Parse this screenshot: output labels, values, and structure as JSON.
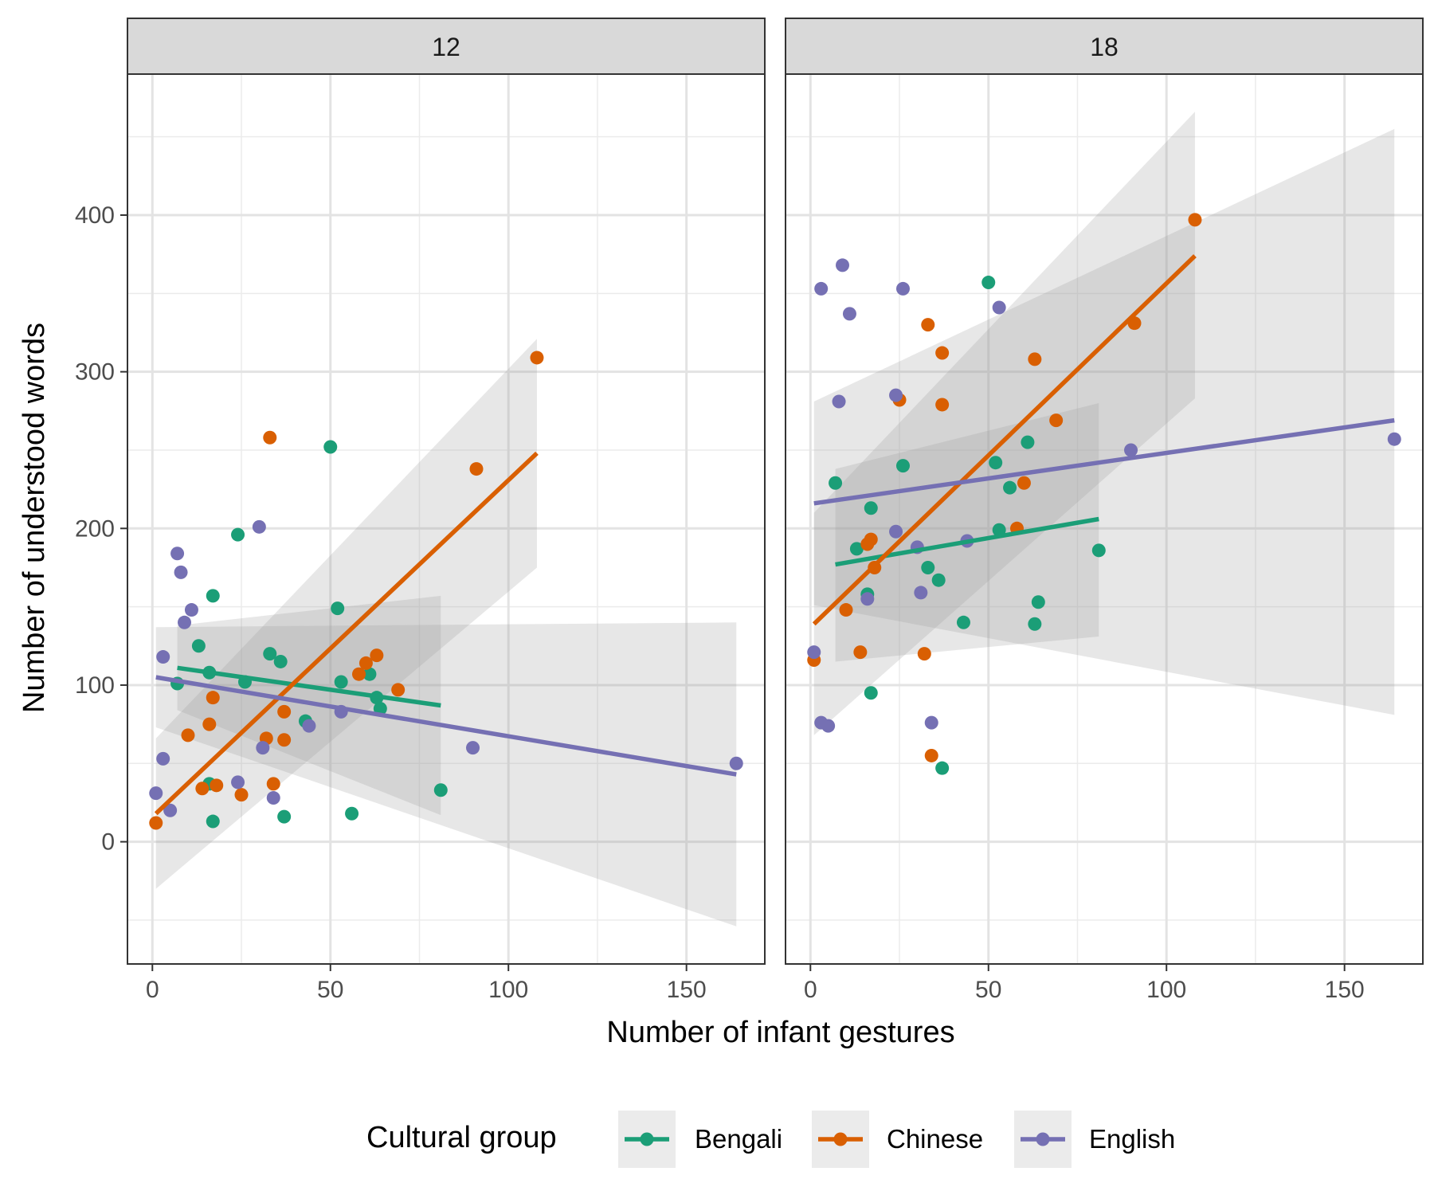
{
  "chart_data": {
    "type": "scatter",
    "xlabel": "Number of infant gestures",
    "ylabel": "Number of understood words",
    "xlim": [
      -7,
      172
    ],
    "ylim": [
      -78,
      490
    ],
    "x_ticks": [
      0,
      50,
      100,
      150
    ],
    "y_ticks": [
      0,
      100,
      200,
      300,
      400
    ],
    "legend": {
      "title": "Cultural group",
      "position": "bottom",
      "entries": [
        "Bengali",
        "Chinese",
        "English"
      ]
    },
    "colors": {
      "Bengali": "#1b9e77",
      "Chinese": "#d95f02",
      "English": "#7570b3"
    },
    "panels": [
      {
        "label": "12",
        "points": [
          {
            "group": "Bengali",
            "x": 7,
            "y": 101
          },
          {
            "group": "Bengali",
            "x": 13,
            "y": 125
          },
          {
            "group": "Bengali",
            "x": 16,
            "y": 108
          },
          {
            "group": "Bengali",
            "x": 17,
            "y": 157
          },
          {
            "group": "Bengali",
            "x": 24,
            "y": 196
          },
          {
            "group": "Bengali",
            "x": 26,
            "y": 102
          },
          {
            "group": "Bengali",
            "x": 33,
            "y": 120
          },
          {
            "group": "Bengali",
            "x": 36,
            "y": 115
          },
          {
            "group": "Bengali",
            "x": 37,
            "y": 16
          },
          {
            "group": "Bengali",
            "x": 43,
            "y": 77
          },
          {
            "group": "Bengali",
            "x": 50,
            "y": 252
          },
          {
            "group": "Bengali",
            "x": 52,
            "y": 149
          },
          {
            "group": "Bengali",
            "x": 53,
            "y": 102
          },
          {
            "group": "Bengali",
            "x": 56,
            "y": 18
          },
          {
            "group": "Bengali",
            "x": 61,
            "y": 107
          },
          {
            "group": "Bengali",
            "x": 63,
            "y": 92
          },
          {
            "group": "Bengali",
            "x": 64,
            "y": 85
          },
          {
            "group": "Bengali",
            "x": 81,
            "y": 33
          },
          {
            "group": "Bengali",
            "x": 16,
            "y": 37
          },
          {
            "group": "Bengali",
            "x": 17,
            "y": 13
          },
          {
            "group": "Chinese",
            "x": 1,
            "y": 12
          },
          {
            "group": "Chinese",
            "x": 10,
            "y": 68
          },
          {
            "group": "Chinese",
            "x": 14,
            "y": 34
          },
          {
            "group": "Chinese",
            "x": 16,
            "y": 75
          },
          {
            "group": "Chinese",
            "x": 17,
            "y": 92
          },
          {
            "group": "Chinese",
            "x": 18,
            "y": 36
          },
          {
            "group": "Chinese",
            "x": 25,
            "y": 30
          },
          {
            "group": "Chinese",
            "x": 32,
            "y": 66
          },
          {
            "group": "Chinese",
            "x": 33,
            "y": 258
          },
          {
            "group": "Chinese",
            "x": 34,
            "y": 37
          },
          {
            "group": "Chinese",
            "x": 37,
            "y": 65
          },
          {
            "group": "Chinese",
            "x": 37,
            "y": 83
          },
          {
            "group": "Chinese",
            "x": 58,
            "y": 107
          },
          {
            "group": "Chinese",
            "x": 60,
            "y": 114
          },
          {
            "group": "Chinese",
            "x": 63,
            "y": 119
          },
          {
            "group": "Chinese",
            "x": 69,
            "y": 97
          },
          {
            "group": "Chinese",
            "x": 91,
            "y": 238
          },
          {
            "group": "Chinese",
            "x": 108,
            "y": 309
          },
          {
            "group": "English",
            "x": 1,
            "y": 31
          },
          {
            "group": "English",
            "x": 3,
            "y": 53
          },
          {
            "group": "English",
            "x": 3,
            "y": 118
          },
          {
            "group": "English",
            "x": 5,
            "y": 20
          },
          {
            "group": "English",
            "x": 7,
            "y": 184
          },
          {
            "group": "English",
            "x": 8,
            "y": 172
          },
          {
            "group": "English",
            "x": 9,
            "y": 140
          },
          {
            "group": "English",
            "x": 11,
            "y": 148
          },
          {
            "group": "English",
            "x": 24,
            "y": 38
          },
          {
            "group": "English",
            "x": 30,
            "y": 201
          },
          {
            "group": "English",
            "x": 31,
            "y": 60
          },
          {
            "group": "English",
            "x": 34,
            "y": 28
          },
          {
            "group": "English",
            "x": 44,
            "y": 74
          },
          {
            "group": "English",
            "x": 53,
            "y": 83
          },
          {
            "group": "English",
            "x": 90,
            "y": 60
          },
          {
            "group": "English",
            "x": 164,
            "y": 50
          }
        ],
        "fits": [
          {
            "group": "Bengali",
            "x": [
              7,
              81
            ],
            "y": [
              111,
              87
            ],
            "ci_upper": [
              138,
              157
            ],
            "ci_lower": [
              84,
              17
            ]
          },
          {
            "group": "Chinese",
            "x": [
              1,
              108
            ],
            "y": [
              18,
              248
            ],
            "ci_upper": [
              66,
              321
            ],
            "ci_lower": [
              -30,
              175
            ]
          },
          {
            "group": "English",
            "x": [
              1,
              164
            ],
            "y": [
              105,
              43
            ],
            "ci_upper": [
              137,
              140
            ],
            "ci_lower": [
              73,
              -54
            ]
          }
        ]
      },
      {
        "label": "18",
        "points": [
          {
            "group": "Bengali",
            "x": 7,
            "y": 229
          },
          {
            "group": "Bengali",
            "x": 13,
            "y": 187
          },
          {
            "group": "Bengali",
            "x": 16,
            "y": 158
          },
          {
            "group": "Bengali",
            "x": 17,
            "y": 213
          },
          {
            "group": "Bengali",
            "x": 17,
            "y": 95
          },
          {
            "group": "Bengali",
            "x": 26,
            "y": 240
          },
          {
            "group": "Bengali",
            "x": 33,
            "y": 175
          },
          {
            "group": "Bengali",
            "x": 36,
            "y": 167
          },
          {
            "group": "Bengali",
            "x": 37,
            "y": 47
          },
          {
            "group": "Bengali",
            "x": 43,
            "y": 140
          },
          {
            "group": "Bengali",
            "x": 50,
            "y": 357
          },
          {
            "group": "Bengali",
            "x": 52,
            "y": 242
          },
          {
            "group": "Bengali",
            "x": 53,
            "y": 199
          },
          {
            "group": "Bengali",
            "x": 56,
            "y": 226
          },
          {
            "group": "Bengali",
            "x": 61,
            "y": 255
          },
          {
            "group": "Bengali",
            "x": 63,
            "y": 139
          },
          {
            "group": "Bengali",
            "x": 64,
            "y": 153
          },
          {
            "group": "Bengali",
            "x": 81,
            "y": 186
          },
          {
            "group": "Chinese",
            "x": 1,
            "y": 116
          },
          {
            "group": "Chinese",
            "x": 10,
            "y": 148
          },
          {
            "group": "Chinese",
            "x": 14,
            "y": 121
          },
          {
            "group": "Chinese",
            "x": 16,
            "y": 190
          },
          {
            "group": "Chinese",
            "x": 17,
            "y": 193
          },
          {
            "group": "Chinese",
            "x": 18,
            "y": 175
          },
          {
            "group": "Chinese",
            "x": 25,
            "y": 282
          },
          {
            "group": "Chinese",
            "x": 32,
            "y": 120
          },
          {
            "group": "Chinese",
            "x": 33,
            "y": 330
          },
          {
            "group": "Chinese",
            "x": 34,
            "y": 55
          },
          {
            "group": "Chinese",
            "x": 37,
            "y": 312
          },
          {
            "group": "Chinese",
            "x": 37,
            "y": 279
          },
          {
            "group": "Chinese",
            "x": 58,
            "y": 200
          },
          {
            "group": "Chinese",
            "x": 60,
            "y": 229
          },
          {
            "group": "Chinese",
            "x": 63,
            "y": 308
          },
          {
            "group": "Chinese",
            "x": 69,
            "y": 269
          },
          {
            "group": "Chinese",
            "x": 91,
            "y": 331
          },
          {
            "group": "Chinese",
            "x": 108,
            "y": 397
          },
          {
            "group": "English",
            "x": 1,
            "y": 121
          },
          {
            "group": "English",
            "x": 3,
            "y": 353
          },
          {
            "group": "English",
            "x": 3,
            "y": 76
          },
          {
            "group": "English",
            "x": 5,
            "y": 74
          },
          {
            "group": "English",
            "x": 8,
            "y": 281
          },
          {
            "group": "English",
            "x": 9,
            "y": 368
          },
          {
            "group": "English",
            "x": 11,
            "y": 337
          },
          {
            "group": "English",
            "x": 16,
            "y": 155
          },
          {
            "group": "English",
            "x": 24,
            "y": 198
          },
          {
            "group": "English",
            "x": 24,
            "y": 285
          },
          {
            "group": "English",
            "x": 26,
            "y": 353
          },
          {
            "group": "English",
            "x": 30,
            "y": 188
          },
          {
            "group": "English",
            "x": 31,
            "y": 159
          },
          {
            "group": "English",
            "x": 34,
            "y": 76
          },
          {
            "group": "English",
            "x": 44,
            "y": 192
          },
          {
            "group": "English",
            "x": 53,
            "y": 341
          },
          {
            "group": "English",
            "x": 90,
            "y": 250
          },
          {
            "group": "English",
            "x": 164,
            "y": 257
          }
        ],
        "fits": [
          {
            "group": "Bengali",
            "x": [
              7,
              81
            ],
            "y": [
              177,
              206
            ],
            "ci_upper": [
              238,
              280
            ],
            "ci_lower": [
              115,
              131
            ]
          },
          {
            "group": "Chinese",
            "x": [
              1,
              108
            ],
            "y": [
              139,
              374
            ],
            "ci_upper": [
              210,
              466
            ],
            "ci_lower": [
              68,
              283
            ]
          },
          {
            "group": "English",
            "x": [
              1,
              164
            ],
            "y": [
              216,
              269
            ],
            "ci_upper": [
              281,
              455
            ],
            "ci_lower": [
              151,
              81
            ]
          }
        ]
      }
    ]
  }
}
